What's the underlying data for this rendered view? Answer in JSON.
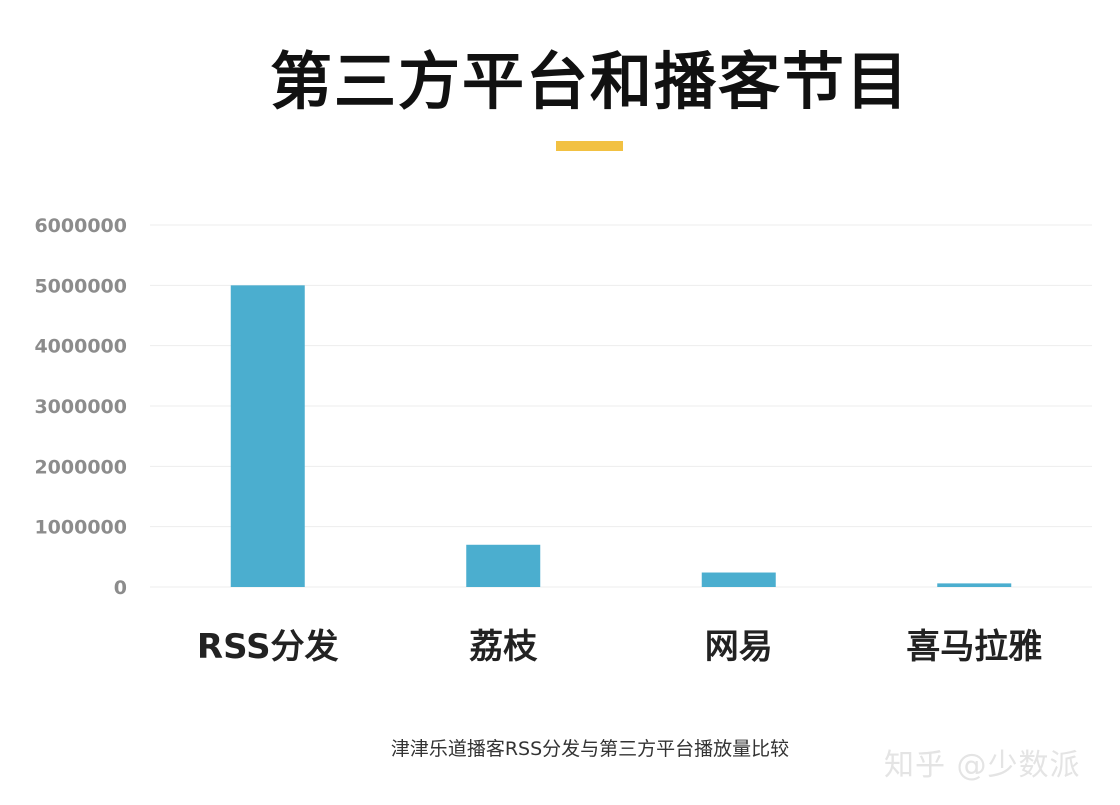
{
  "title": "第三方平台和播客节目",
  "caption": "津津乐道播客RSS分发与第三方平台播放量比较",
  "watermark": "知乎 @少数派",
  "colors": {
    "bar": "#4BAECF",
    "accent": "#F2C142",
    "grid": "#EDEDED",
    "tick_label": "#8C8C8C",
    "category_label": "#222222"
  },
  "chart_data": {
    "type": "bar",
    "title": "第三方平台和播客节目",
    "categories": [
      "RSS分发",
      "荔枝",
      "网易",
      "喜马拉雅"
    ],
    "values": [
      5000000,
      700000,
      240000,
      60000
    ],
    "ylim": [
      0,
      6000000
    ],
    "yticks": [
      {
        "value": 0,
        "label": "0"
      },
      {
        "value": 1000000,
        "label": "1000000"
      },
      {
        "value": 2000000,
        "label": "2000000"
      },
      {
        "value": 3000000,
        "label": "3000000"
      },
      {
        "value": 4000000,
        "label": "4000000"
      },
      {
        "value": 5000000,
        "label": "5000000"
      },
      {
        "value": 6000000,
        "label": "6000000"
      }
    ],
    "grid": true,
    "xlabel": "",
    "ylabel": ""
  }
}
